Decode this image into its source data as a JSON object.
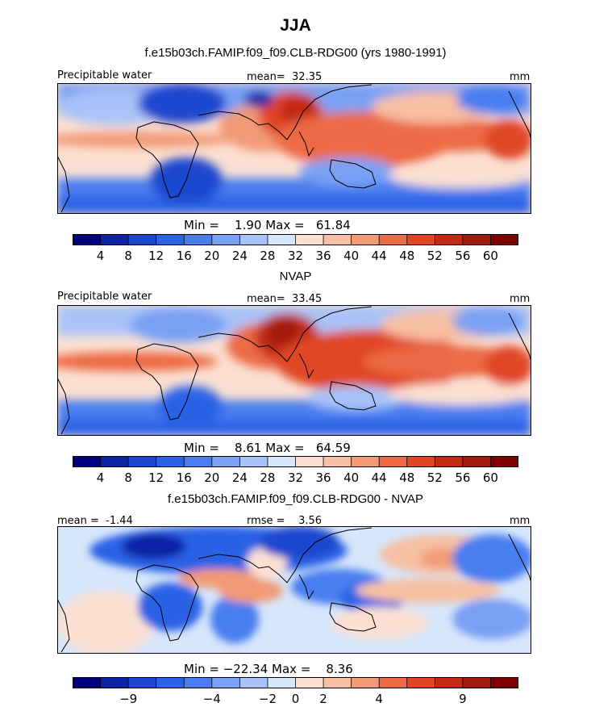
{
  "figure": {
    "season_title": "JJA"
  },
  "panels": [
    {
      "subtitle": "f.e15b03ch.FAMIP.f09_f09.CLB-RDG00 (yrs 1980-1991)",
      "left_label": "Precipitable water",
      "center_label": "mean=  32.35",
      "units": "mm",
      "minmax": "Min =    1.90 Max =   61.84"
    },
    {
      "subtitle": "NVAP",
      "left_label": "Precipitable water",
      "center_label": "mean=  33.45",
      "units": "mm",
      "minmax": "Min =    8.61 Max =   64.59"
    },
    {
      "subtitle": "f.e15b03ch.FAMIP.f09_f09.CLB-RDG00 - NVAP",
      "left_label": "mean =  -1.44",
      "center_label": "rmse =    3.56",
      "units": "mm",
      "minmax": "Min = −22.34 Max =    8.36"
    }
  ],
  "chart_data": [
    {
      "type": "heatmap",
      "title": "f.e15b03ch.FAMIP.f09_f09.CLB-RDG00 (yrs 1980-1991)",
      "variable": "Precipitable water",
      "units": "mm",
      "mean": 32.35,
      "min": 1.9,
      "max": 61.84,
      "colorbar_levels": [
        4,
        8,
        12,
        16,
        20,
        24,
        28,
        32,
        36,
        40,
        44,
        48,
        52,
        56,
        60
      ],
      "colorbar_tick_labels": [
        "4",
        "8",
        "12",
        "16",
        "20",
        "24",
        "28",
        "32",
        "36",
        "40",
        "44",
        "48",
        "52",
        "56",
        "60"
      ]
    },
    {
      "type": "heatmap",
      "title": "NVAP",
      "variable": "Precipitable water",
      "units": "mm",
      "mean": 33.45,
      "min": 8.61,
      "max": 64.59,
      "colorbar_levels": [
        4,
        8,
        12,
        16,
        20,
        24,
        28,
        32,
        36,
        40,
        44,
        48,
        52,
        56,
        60
      ],
      "colorbar_tick_labels": [
        "4",
        "8",
        "12",
        "16",
        "20",
        "24",
        "28",
        "32",
        "36",
        "40",
        "44",
        "48",
        "52",
        "56",
        "60"
      ]
    },
    {
      "type": "heatmap",
      "title": "f.e15b03ch.FAMIP.f09_f09.CLB-RDG00 - NVAP",
      "units": "mm",
      "mean": -1.44,
      "rmse": 3.56,
      "min": -22.34,
      "max": 8.36,
      "colorbar_levels": [
        -9,
        -4,
        -2,
        0,
        2,
        4,
        9
      ],
      "colorbar_tick_labels": [
        "−9",
        "−4",
        "−2",
        "0",
        "2",
        "4",
        "9"
      ]
    }
  ],
  "palette": [
    "#00007f",
    "#0b24a6",
    "#1d46cf",
    "#2c62e6",
    "#4a7ef0",
    "#7aa0f4",
    "#a9c3f8",
    "#d6e6fb",
    "#fbe0d2",
    "#f7bfa3",
    "#f29a76",
    "#ec6a44",
    "#e04625",
    "#c22a15",
    "#a31a10",
    "#7f0000"
  ],
  "colorbar_divisions": 16
}
